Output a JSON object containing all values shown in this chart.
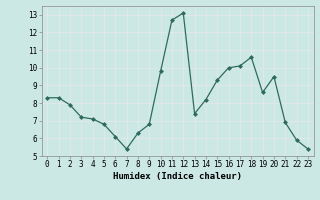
{
  "x": [
    0,
    1,
    2,
    3,
    4,
    5,
    6,
    7,
    8,
    9,
    10,
    11,
    12,
    13,
    14,
    15,
    16,
    17,
    18,
    19,
    20,
    21,
    22,
    23
  ],
  "y": [
    8.3,
    8.3,
    7.9,
    7.2,
    7.1,
    6.8,
    6.1,
    5.4,
    6.3,
    6.8,
    9.8,
    12.7,
    13.1,
    7.4,
    8.2,
    9.3,
    10.0,
    10.1,
    10.6,
    8.6,
    9.5,
    6.9,
    5.9,
    5.4
  ],
  "line_color": "#2e6b5e",
  "marker": "D",
  "marker_size": 2.0,
  "bg_color": "#cce8e4",
  "grid_color": "#e8e8e8",
  "xlabel": "Humidex (Indice chaleur)",
  "xlim": [
    -0.5,
    23.5
  ],
  "ylim": [
    5,
    13.5
  ],
  "yticks": [
    5,
    6,
    7,
    8,
    9,
    10,
    11,
    12,
    13
  ],
  "xticks": [
    0,
    1,
    2,
    3,
    4,
    5,
    6,
    7,
    8,
    9,
    10,
    11,
    12,
    13,
    14,
    15,
    16,
    17,
    18,
    19,
    20,
    21,
    22,
    23
  ],
  "xlabel_fontsize": 6.5,
  "tick_fontsize": 5.5,
  "line_width": 0.9
}
